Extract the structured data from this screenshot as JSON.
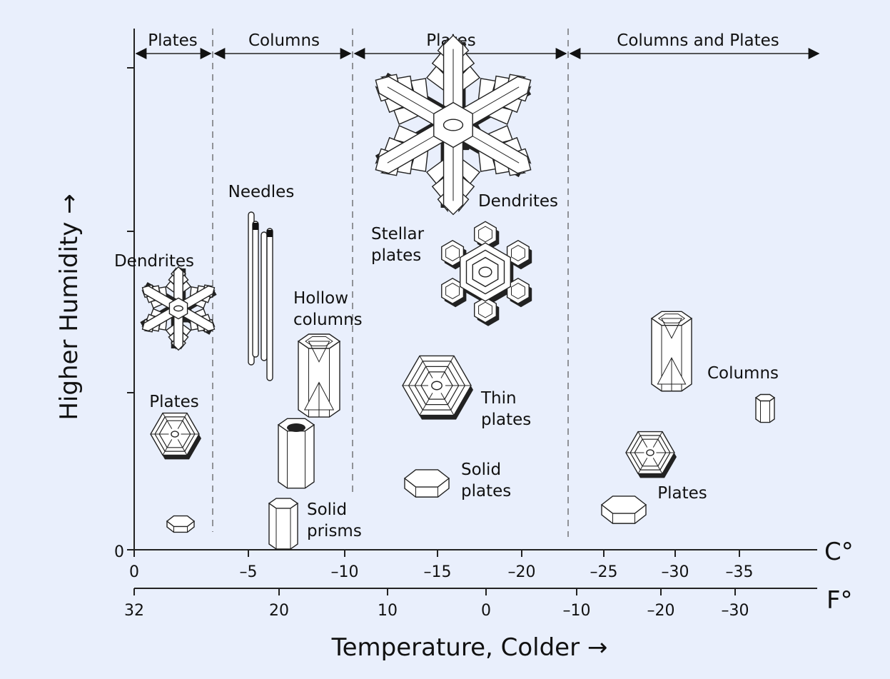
{
  "regions": [
    {
      "label": "Plates",
      "from_c": 0,
      "to_c": -4
    },
    {
      "label": "Columns",
      "from_c": -4,
      "to_c": -10
    },
    {
      "label": "Plates",
      "from_c": -10,
      "to_c": -22
    },
    {
      "label": "Columns and Plates",
      "from_c": -22,
      "to_c": -40
    }
  ],
  "x_axis_celsius": {
    "unit": "C°",
    "ticks": [
      "0",
      "–5",
      "–10",
      "–15",
      "–20",
      "–25",
      "–30",
      "–35"
    ]
  },
  "x_axis_fahrenheit": {
    "unit": "F°",
    "ticks": [
      "32",
      "20",
      "10",
      "0",
      "–10",
      "–20",
      "–30"
    ]
  },
  "y_axis": {
    "label": "Higher Humidity →",
    "zero": "0"
  },
  "x_label": "Temperature,  Colder →",
  "crystals": [
    {
      "type": "dendrite",
      "lines": [
        "Dendrites"
      ]
    },
    {
      "type": "dendrite",
      "lines": [
        "Dendrites"
      ]
    },
    {
      "type": "stellar",
      "lines": [
        "Stellar",
        "plates"
      ]
    },
    {
      "type": "needles",
      "lines": [
        "Needles"
      ]
    },
    {
      "type": "hollow-column",
      "lines": [
        "Hollow",
        "columns"
      ]
    },
    {
      "type": "plate",
      "lines": [
        "Plates"
      ]
    },
    {
      "type": "prism",
      "lines": [
        "Solid",
        "prisms"
      ]
    },
    {
      "type": "thin-plate",
      "lines": [
        "Thin",
        "plates"
      ]
    },
    {
      "type": "solid-plate",
      "lines": [
        "Solid",
        "plates"
      ]
    },
    {
      "type": "column",
      "lines": [
        "Columns"
      ]
    },
    {
      "type": "plate",
      "lines": [
        "Plates"
      ]
    }
  ],
  "colors": {
    "background": "#e9effc",
    "ink": "#111111",
    "crystal": "#ffffff"
  }
}
